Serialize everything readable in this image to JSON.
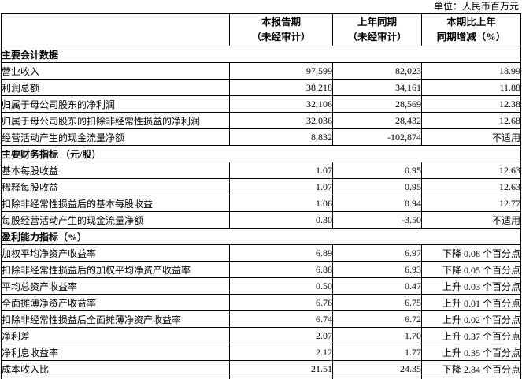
{
  "unit_label": "单位：人民币百万元",
  "table": {
    "column_headers": [
      {
        "line1": "本报告期",
        "line2": "（未经审计）"
      },
      {
        "line1": "上年同期",
        "line2": "（未经审计）"
      },
      {
        "line1": "本期比上年",
        "line2": "同期增减（%）"
      }
    ],
    "sections": [
      {
        "title": "主要会计数据",
        "rows": [
          {
            "label": "营业收入",
            "current": "97,599",
            "prior": "82,023",
            "change": "18.99"
          },
          {
            "label": "利润总额",
            "current": "38,218",
            "prior": "34,161",
            "change": "11.88"
          },
          {
            "label": "归属于母公司股东的净利润",
            "current": "32,106",
            "prior": "28,569",
            "change": "12.38"
          },
          {
            "label": "归属于母公司股东的扣除非经常性损益的净利润",
            "current": "32,036",
            "prior": "28,432",
            "change": "12.68"
          },
          {
            "label": "经营活动产生的现金流量净额",
            "current": "8,832",
            "prior": "-102,874",
            "change": "不适用"
          }
        ]
      },
      {
        "title": "主要财务指标 （元/股）",
        "rows": [
          {
            "label": "基本每股收益",
            "current": "1.07",
            "prior": "0.95",
            "change": "12.63"
          },
          {
            "label": "稀释每股收益",
            "current": "1.07",
            "prior": "0.95",
            "change": "12.63"
          },
          {
            "label": "扣除非经常性损益后的基本每股收益",
            "current": "1.06",
            "prior": "0.94",
            "change": "12.77"
          },
          {
            "label": "每股经营活动产生的现金流量净额",
            "current": "0.30",
            "prior": "-3.50",
            "change": "不适用"
          }
        ]
      },
      {
        "title": "盈利能力指标（%）",
        "rows": [
          {
            "label": "加权平均净资产收益率",
            "current": "6.89",
            "prior": "6.97",
            "change": "下降 0.08 个百分点"
          },
          {
            "label": "扣除非经常性损益后的加权平均净资产收益率",
            "current": "6.88",
            "prior": "6.93",
            "change": "下降 0.05 个百分点"
          },
          {
            "label": "平均总资产收益率",
            "current": "0.50",
            "prior": "0.47",
            "change": "上升 0.03 个百分点"
          },
          {
            "label": "全面摊薄净资产收益率",
            "current": "6.76",
            "prior": "6.75",
            "change": "上升 0.01 个百分点"
          },
          {
            "label": "扣除非经常性损益后全面摊薄净资产收益率",
            "current": "6.74",
            "prior": "6.72",
            "change": "上升 0.02 个百分点"
          },
          {
            "label": "净利差",
            "current": "2.07",
            "prior": "1.70",
            "change": "上升 0.37 个百分点"
          },
          {
            "label": "净利息收益率",
            "current": "2.12",
            "prior": "1.77",
            "change": "上升 0.35 个百分点"
          },
          {
            "label": "成本收入比",
            "current": "21.51",
            "prior": "24.35",
            "change": "下降 2.84 个百分点"
          }
        ]
      }
    ]
  }
}
